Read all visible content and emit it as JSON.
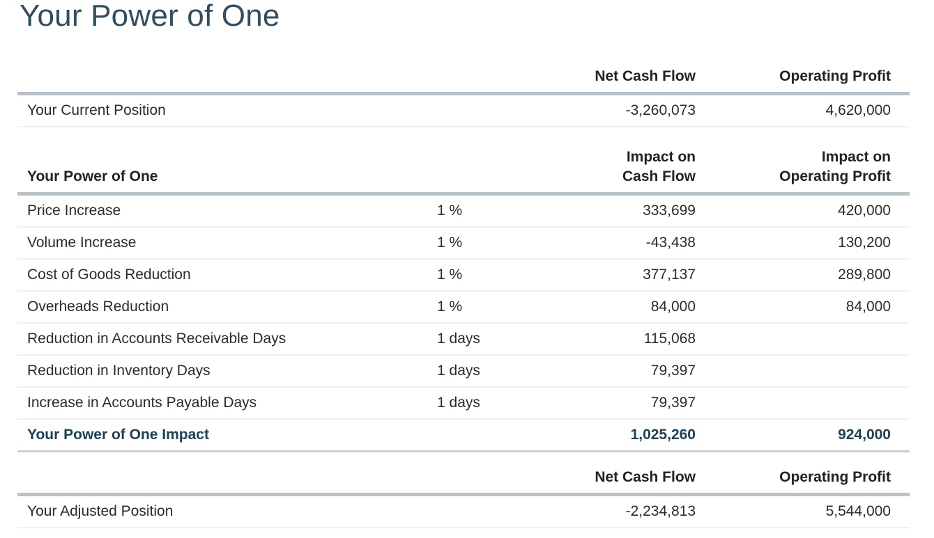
{
  "title": "Your Power of One",
  "current": {
    "headers": {
      "cash": "Net Cash Flow",
      "profit": "Operating Profit"
    },
    "row": {
      "label": "Your Current Position",
      "cash": "-3,260,073",
      "profit": "4,620,000"
    }
  },
  "power": {
    "headers": {
      "label": "Your Power of One",
      "cash_line1": "Impact on",
      "cash_line2": "Cash Flow",
      "profit_line1": "Impact on",
      "profit_line2": "Operating Profit"
    },
    "rows": [
      {
        "label": "Price Increase",
        "change": "1 %",
        "cash": "333,699",
        "profit": "420,000"
      },
      {
        "label": "Volume Increase",
        "change": "1 %",
        "cash": "-43,438",
        "profit": "130,200"
      },
      {
        "label": "Cost of Goods Reduction",
        "change": "1 %",
        "cash": "377,137",
        "profit": "289,800"
      },
      {
        "label": "Overheads Reduction",
        "change": "1 %",
        "cash": "84,000",
        "profit": "84,000"
      },
      {
        "label": "Reduction in Accounts Receivable Days",
        "change": "1 days",
        "cash": "115,068",
        "profit": ""
      },
      {
        "label": "Reduction in Inventory Days",
        "change": "1 days",
        "cash": "79,397",
        "profit": ""
      },
      {
        "label": "Increase in Accounts Payable Days",
        "change": "1 days",
        "cash": "79,397",
        "profit": ""
      }
    ],
    "total": {
      "label": "Your Power of One Impact",
      "cash": "1,025,260",
      "profit": "924,000"
    }
  },
  "adjusted": {
    "headers": {
      "cash": "Net Cash Flow",
      "profit": "Operating Profit"
    },
    "row": {
      "label": "Your Adjusted Position",
      "cash": "-2,234,813",
      "profit": "5,544,000"
    }
  }
}
